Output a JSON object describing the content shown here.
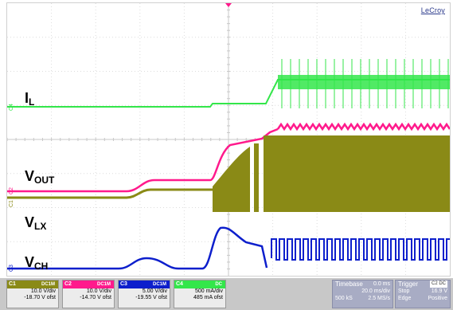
{
  "brand": "LeCroy",
  "signals": [
    {
      "main": "I",
      "sub": "L",
      "color": "#33e64a"
    },
    {
      "main": "V",
      "sub": "OUT",
      "color": "#ff1a8c"
    },
    {
      "main": "V",
      "sub": "LX",
      "color": "#8a8a16"
    },
    {
      "main": "V",
      "sub": "CH",
      "color": "#0d1fcc"
    }
  ],
  "markers": [
    "C4",
    "C2",
    "C1",
    "C3"
  ],
  "channels": [
    {
      "name": "C1",
      "tag": "DC1M",
      "color": "#8a8a16",
      "vdiv": "10.0 V/div",
      "ofst": "-18.70 V ofst"
    },
    {
      "name": "C2",
      "tag": "DC1M",
      "color": "#ff1a8c",
      "vdiv": "10.0 V/div",
      "ofst": "-14.70 V ofst"
    },
    {
      "name": "C3",
      "tag": "DC1M",
      "color": "#0d1fcc",
      "vdiv": "5.00 V/div",
      "ofst": "-19.55 V ofst"
    },
    {
      "name": "C4",
      "tag": "DC",
      "color": "#33e64a",
      "vdiv": "500 mA/div",
      "ofst": "485 mA ofst"
    }
  ],
  "timebase": {
    "title": "Timebase",
    "delay": "0.0 ms",
    "tdiv": "20.0 ms/div",
    "samples": "500 kS",
    "rate": "2.5 MS/s"
  },
  "trigger": {
    "title": "Trigger",
    "tag": "C2 DC",
    "state": "Stop",
    "level": "16.9 V",
    "type": "Edge",
    "slope": "Positive"
  }
}
